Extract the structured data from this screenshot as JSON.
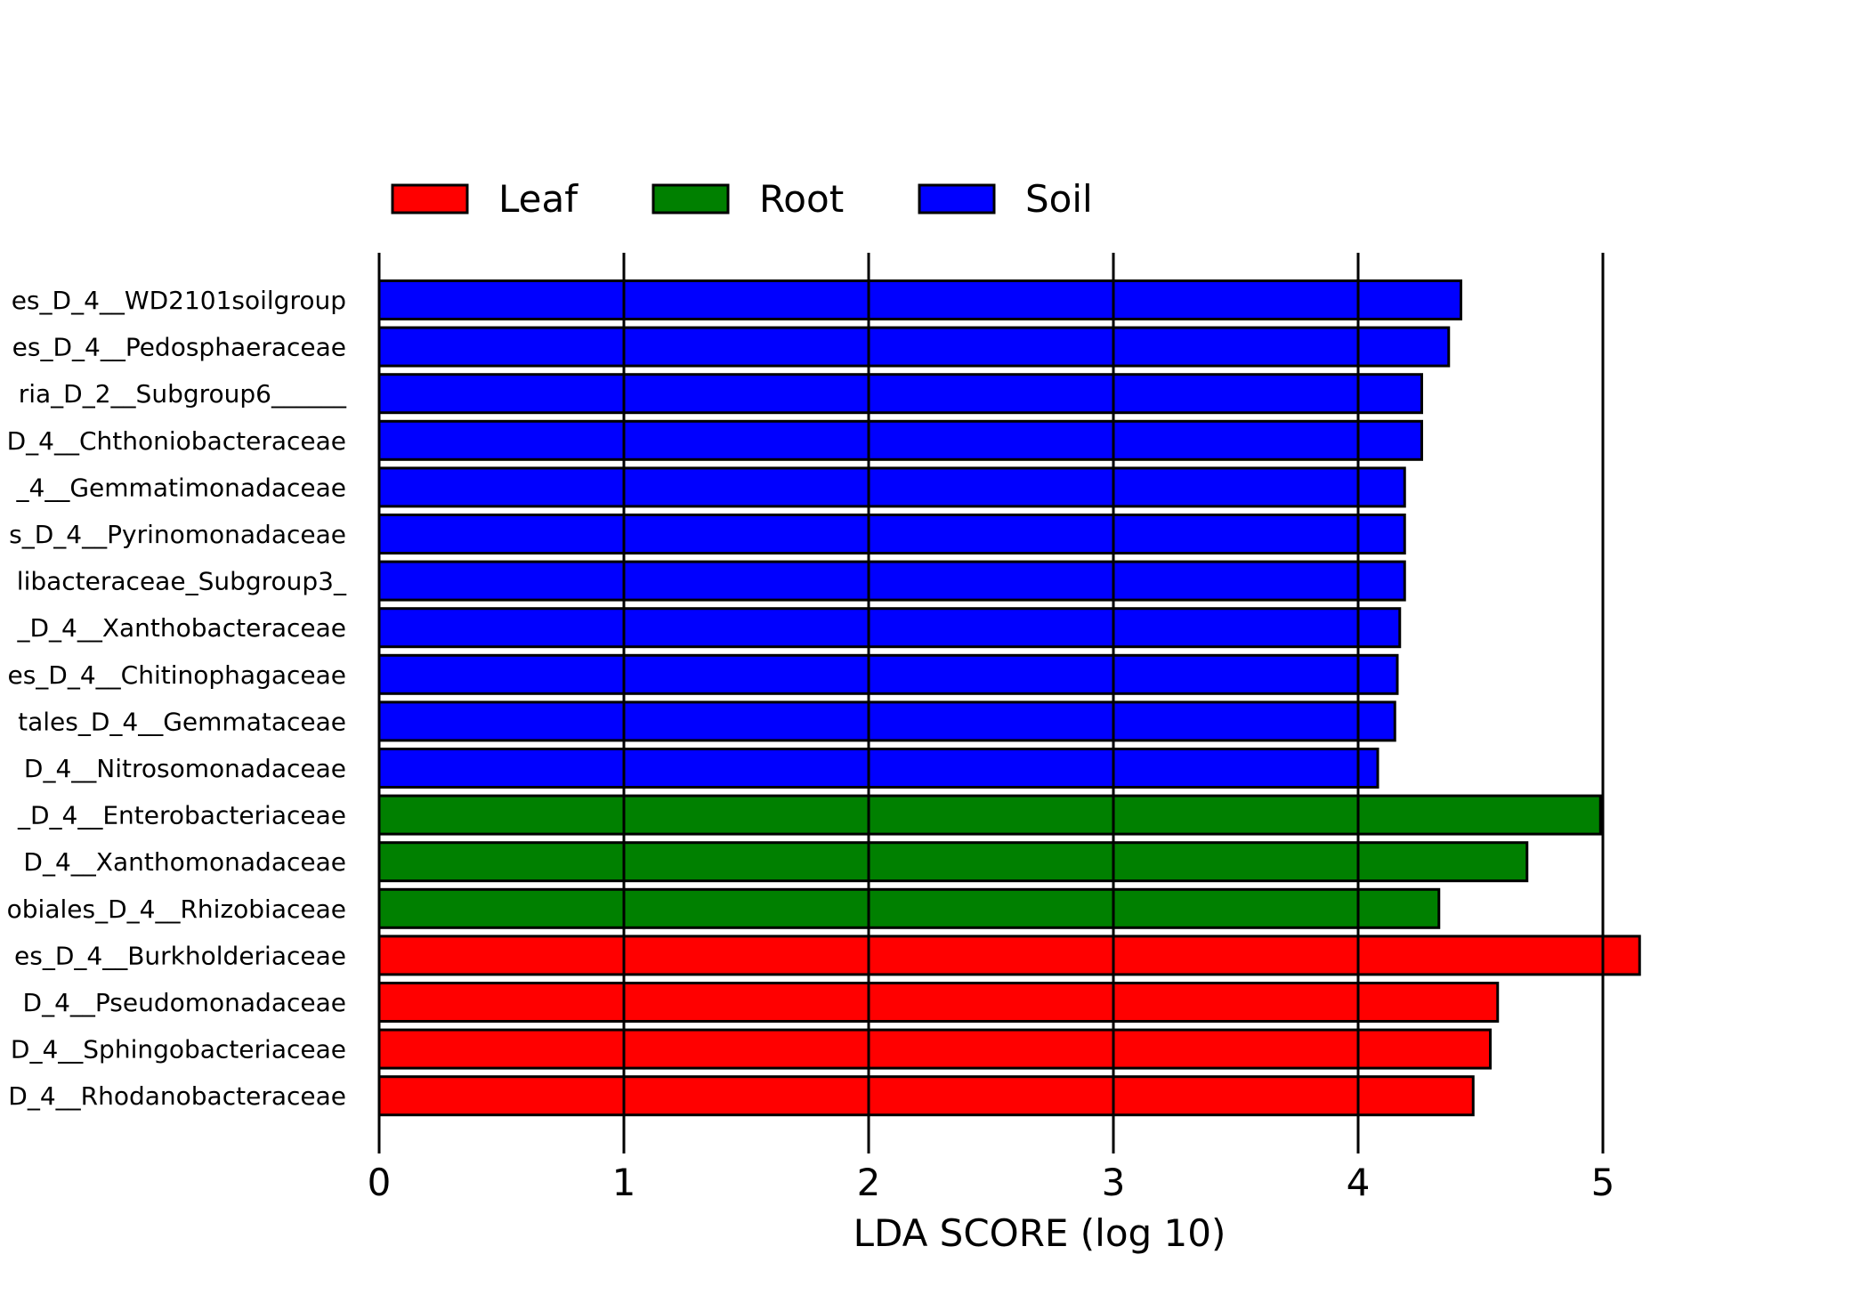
{
  "chart_data": {
    "type": "bar",
    "orientation": "horizontal",
    "xlabel": "LDA SCORE (log 10)",
    "xlim": [
      0,
      5.5
    ],
    "xticks": [
      "0",
      "1",
      "2",
      "3",
      "4",
      "5"
    ],
    "grid": "vertical lines at integer ticks",
    "legend": {
      "placement": "top-left",
      "entries": [
        {
          "name": "Leaf",
          "color": "#ff0000"
        },
        {
          "name": "Root",
          "color": "#008000"
        },
        {
          "name": "Soil",
          "color": "#0000ff"
        }
      ]
    },
    "bars": [
      {
        "label": "es_D_4__WD2101soilgroup",
        "value": 4.42,
        "group": "Soil"
      },
      {
        "label": "es_D_4__Pedosphaeraceae",
        "value": 4.37,
        "group": "Soil"
      },
      {
        "label": "ria_D_2__Subgroup6______",
        "value": 4.26,
        "group": "Soil"
      },
      {
        "label": "D_4__Chthoniobacteraceae",
        "value": 4.26,
        "group": "Soil"
      },
      {
        "label": "_4__Gemmatimonadaceae",
        "value": 4.19,
        "group": "Soil"
      },
      {
        "label": "s_D_4__Pyrinomonadaceae",
        "value": 4.19,
        "group": "Soil"
      },
      {
        "label": "libacteraceae_Subgroup3_",
        "value": 4.19,
        "group": "Soil"
      },
      {
        "label": "_D_4__Xanthobacteraceae",
        "value": 4.17,
        "group": "Soil"
      },
      {
        "label": "es_D_4__Chitinophagaceae",
        "value": 4.16,
        "group": "Soil"
      },
      {
        "label": "tales_D_4__Gemmataceae",
        "value": 4.15,
        "group": "Soil"
      },
      {
        "label": "D_4__Nitrosomonadaceae",
        "value": 4.08,
        "group": "Soil"
      },
      {
        "label": "_D_4__Enterobacteriaceae",
        "value": 4.99,
        "group": "Root"
      },
      {
        "label": "D_4__Xanthomonadaceae",
        "value": 4.69,
        "group": "Root"
      },
      {
        "label": "obiales_D_4__Rhizobiaceae",
        "value": 4.33,
        "group": "Root"
      },
      {
        "label": "es_D_4__Burkholderiaceae",
        "value": 5.15,
        "group": "Leaf"
      },
      {
        "label": "D_4__Pseudomonadaceae",
        "value": 4.57,
        "group": "Leaf"
      },
      {
        "label": "D_4__Sphingobacteriaceae",
        "value": 4.54,
        "group": "Leaf"
      },
      {
        "label": "D_4__Rhodanobacteraceae",
        "value": 4.47,
        "group": "Leaf"
      }
    ]
  }
}
